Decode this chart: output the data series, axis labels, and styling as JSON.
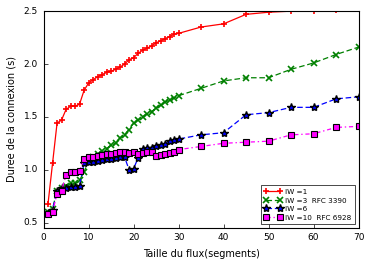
{
  "title": "",
  "xlabel": "Taille du flux(segments)",
  "ylabel": "Duree de la connexion (s)",
  "xlim": [
    0,
    70
  ],
  "ylim": [
    0.45,
    2.5
  ],
  "xticks": [
    0,
    10,
    20,
    30,
    40,
    50,
    60,
    70
  ],
  "yticks": [
    0.5,
    1.0,
    1.5,
    2.0,
    2.5
  ],
  "series": {
    "iw1": {
      "x": [
        1,
        2,
        3,
        4,
        5,
        6,
        7,
        8,
        9,
        10,
        11,
        12,
        13,
        14,
        15,
        16,
        17,
        18,
        19,
        20,
        21,
        22,
        23,
        24,
        25,
        26,
        27,
        28,
        29,
        30,
        35,
        40,
        45,
        50,
        55,
        60,
        65,
        70
      ],
      "y": [
        0.68,
        1.06,
        1.44,
        1.47,
        1.57,
        1.6,
        1.6,
        1.62,
        1.75,
        1.82,
        1.85,
        1.88,
        1.9,
        1.92,
        1.93,
        1.95,
        1.97,
        2.0,
        2.04,
        2.06,
        2.1,
        2.13,
        2.15,
        2.17,
        2.2,
        2.22,
        2.24,
        2.26,
        2.28,
        2.29,
        2.35,
        2.38,
        2.47,
        2.49,
        2.5,
        2.5,
        2.51,
        2.52
      ],
      "color": "#ff0000",
      "linestyle": "-",
      "marker": "+"
    },
    "iw3": {
      "x": [
        1,
        2,
        3,
        4,
        5,
        6,
        7,
        8,
        9,
        10,
        11,
        12,
        13,
        14,
        15,
        16,
        17,
        18,
        19,
        20,
        21,
        22,
        23,
        24,
        25,
        26,
        27,
        28,
        29,
        30,
        35,
        40,
        45,
        50,
        55,
        60,
        65,
        70
      ],
      "y": [
        0.6,
        0.63,
        0.8,
        0.83,
        0.85,
        0.87,
        0.87,
        0.9,
        0.98,
        1.08,
        1.12,
        1.15,
        1.18,
        1.2,
        1.23,
        1.25,
        1.3,
        1.33,
        1.38,
        1.44,
        1.47,
        1.5,
        1.53,
        1.55,
        1.58,
        1.61,
        1.64,
        1.66,
        1.68,
        1.7,
        1.77,
        1.84,
        1.87,
        1.87,
        1.95,
        2.01,
        2.09,
        2.16
      ],
      "color": "#008000",
      "linestyle": "--",
      "marker": "x"
    },
    "iw6": {
      "x": [
        1,
        2,
        3,
        4,
        5,
        6,
        7,
        8,
        9,
        10,
        11,
        12,
        13,
        14,
        15,
        16,
        17,
        18,
        19,
        20,
        21,
        22,
        23,
        24,
        25,
        26,
        27,
        28,
        29,
        30,
        35,
        40,
        45,
        50,
        55,
        60,
        65,
        70
      ],
      "y": [
        0.59,
        0.62,
        0.8,
        0.83,
        0.83,
        0.84,
        0.84,
        0.85,
        1.06,
        1.07,
        1.07,
        1.08,
        1.09,
        1.1,
        1.1,
        1.11,
        1.12,
        1.12,
        1.0,
        1.01,
        1.11,
        1.2,
        1.21,
        1.21,
        1.22,
        1.23,
        1.24,
        1.27,
        1.28,
        1.29,
        1.33,
        1.35,
        1.52,
        1.54,
        1.59,
        1.59,
        1.67,
        1.69
      ],
      "color": "#0000ff",
      "linestyle": "--",
      "marker": "*"
    },
    "iw10": {
      "x": [
        1,
        2,
        3,
        4,
        5,
        6,
        7,
        8,
        9,
        10,
        11,
        12,
        13,
        14,
        15,
        16,
        17,
        18,
        19,
        20,
        21,
        22,
        23,
        24,
        25,
        26,
        27,
        28,
        29,
        30,
        35,
        40,
        45,
        50,
        55,
        60,
        65,
        70
      ],
      "y": [
        0.58,
        0.6,
        0.77,
        0.8,
        0.95,
        0.98,
        0.98,
        0.99,
        1.1,
        1.12,
        1.12,
        1.13,
        1.14,
        1.15,
        1.15,
        1.16,
        1.17,
        1.17,
        1.16,
        1.17,
        1.15,
        1.16,
        1.17,
        1.17,
        1.13,
        1.14,
        1.15,
        1.16,
        1.17,
        1.19,
        1.22,
        1.25,
        1.26,
        1.27,
        1.33,
        1.34,
        1.4,
        1.41
      ],
      "color": "#ff00ff",
      "linestyle": "-.",
      "marker": "s"
    }
  },
  "legend_labels": [
    "IW =1",
    "IW =3  RFC 3390",
    "IW =6",
    "IW =10  RFC 6928"
  ],
  "bg_color": "#ffffff"
}
